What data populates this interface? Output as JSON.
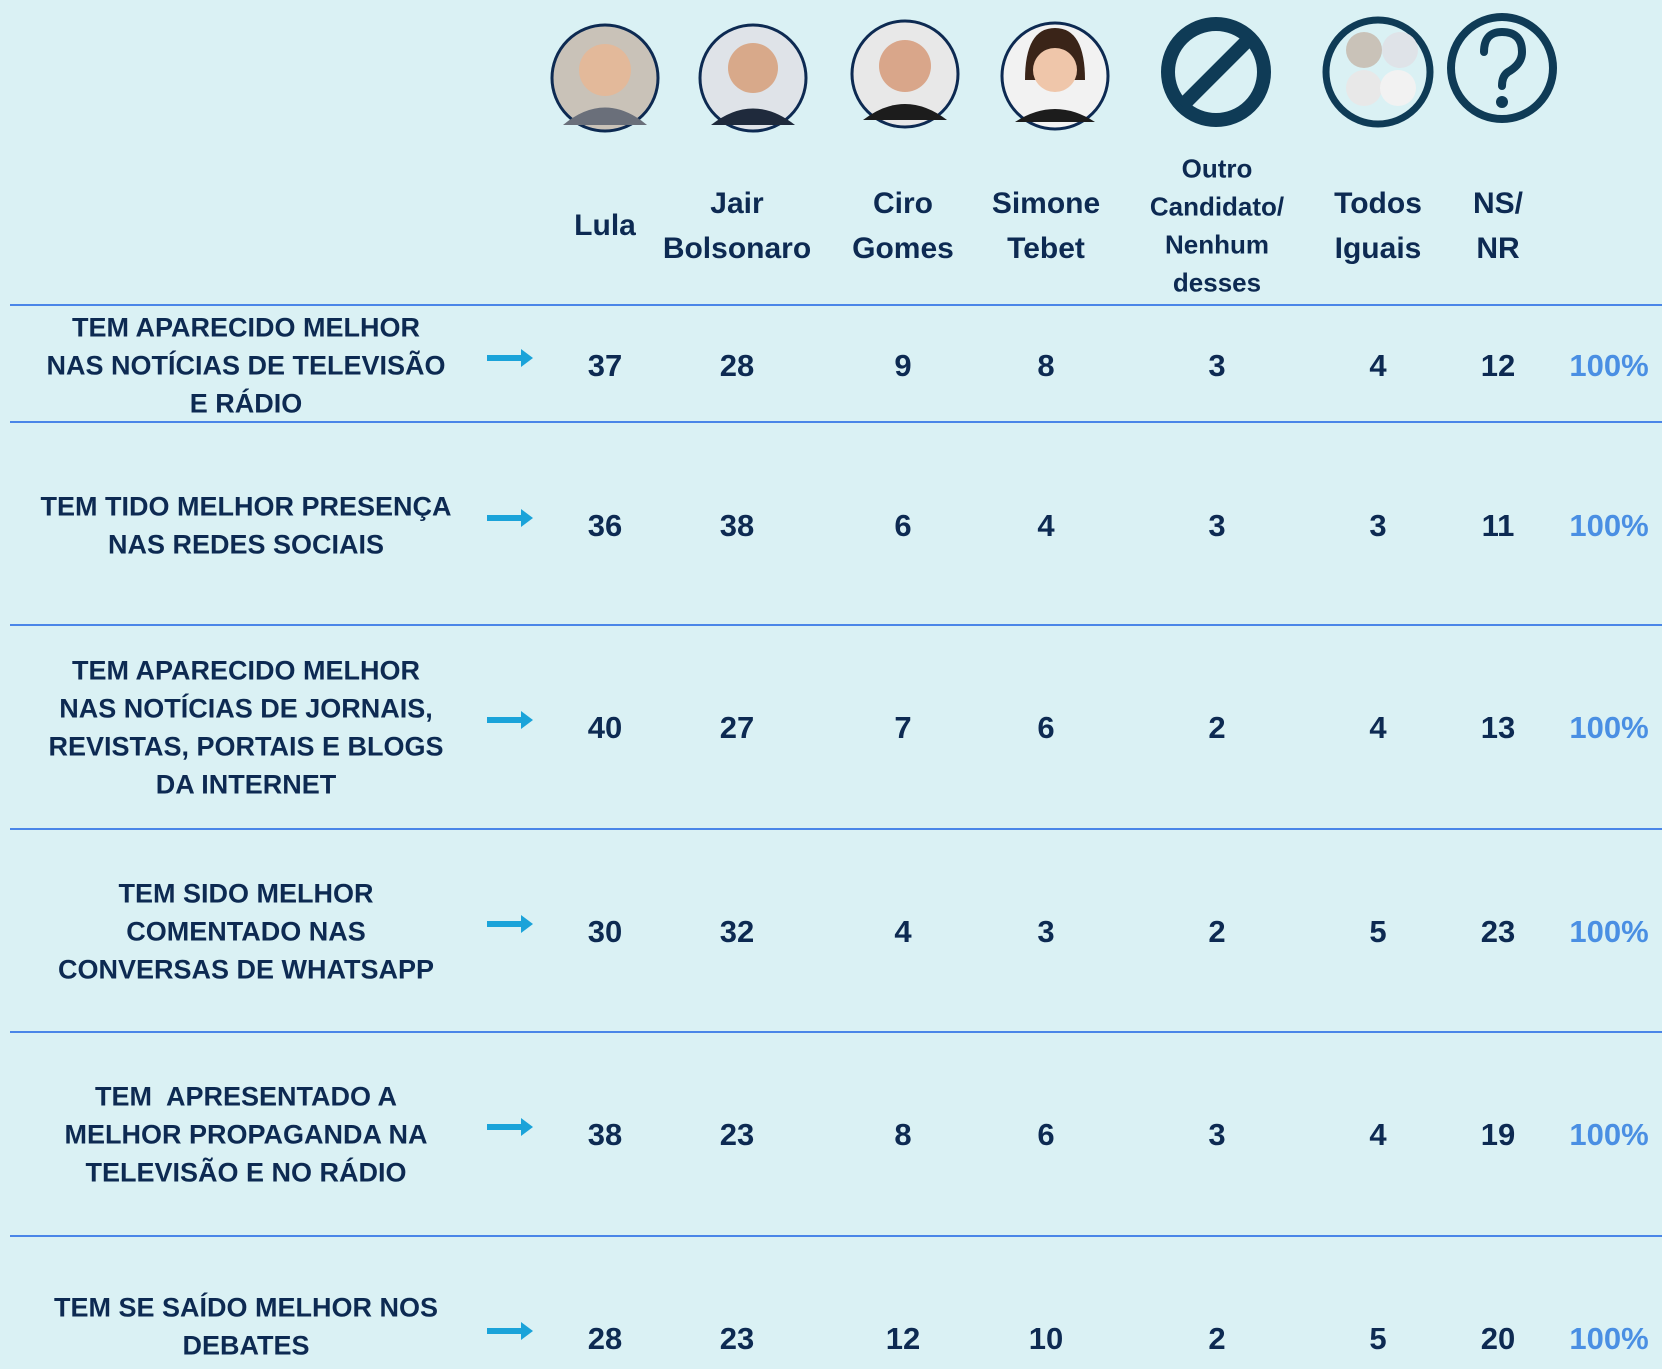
{
  "table": {
    "columns": [
      [
        "Lula"
      ],
      [
        "Jair",
        "Bolsonaro"
      ],
      [
        "Ciro",
        "Gomes"
      ],
      [
        "Simone",
        "Tebet"
      ],
      [
        "Outro",
        "Candidato/",
        "Nenhum",
        "desses"
      ],
      [
        "Todos",
        "Iguais"
      ],
      [
        "NS/",
        "NR"
      ]
    ],
    "rows": [
      {
        "label": [
          "TEM APARECIDO MELHOR",
          "NAS NOTÍCIAS DE TELEVISÃO",
          "E RÁDIO"
        ],
        "values": [
          37,
          28,
          9,
          8,
          3,
          4,
          12
        ],
        "total": "100%"
      },
      {
        "label": [
          "TEM TIDO MELHOR PRESENÇA",
          "NAS REDES SOCIAIS"
        ],
        "values": [
          36,
          38,
          6,
          4,
          3,
          3,
          11
        ],
        "total": "100%"
      },
      {
        "label": [
          "TEM APARECIDO MELHOR",
          "NAS NOTÍCIAS DE JORNAIS,",
          "REVISTAS, PORTAIS E BLOGS",
          "DA INTERNET"
        ],
        "values": [
          40,
          27,
          7,
          6,
          2,
          4,
          13
        ],
        "total": "100%"
      },
      {
        "label": [
          "TEM SIDO MELHOR",
          "COMENTADO NAS",
          "CONVERSAS DE WHATSAPP"
        ],
        "values": [
          30,
          32,
          4,
          3,
          2,
          5,
          23
        ],
        "total": "100%"
      },
      {
        "label": [
          "TEM  APRESENTADO A",
          "MELHOR PROPAGANDA NA",
          "TELEVISÃO E NO RÁDIO"
        ],
        "values": [
          38,
          23,
          8,
          6,
          3,
          4,
          19
        ],
        "total": "100%"
      },
      {
        "label": [
          "TEM SE SAÍDO MELHOR NOS",
          "DEBATES"
        ],
        "values": [
          28,
          23,
          12,
          10,
          2,
          5,
          20
        ],
        "total": "100%"
      }
    ]
  }
}
